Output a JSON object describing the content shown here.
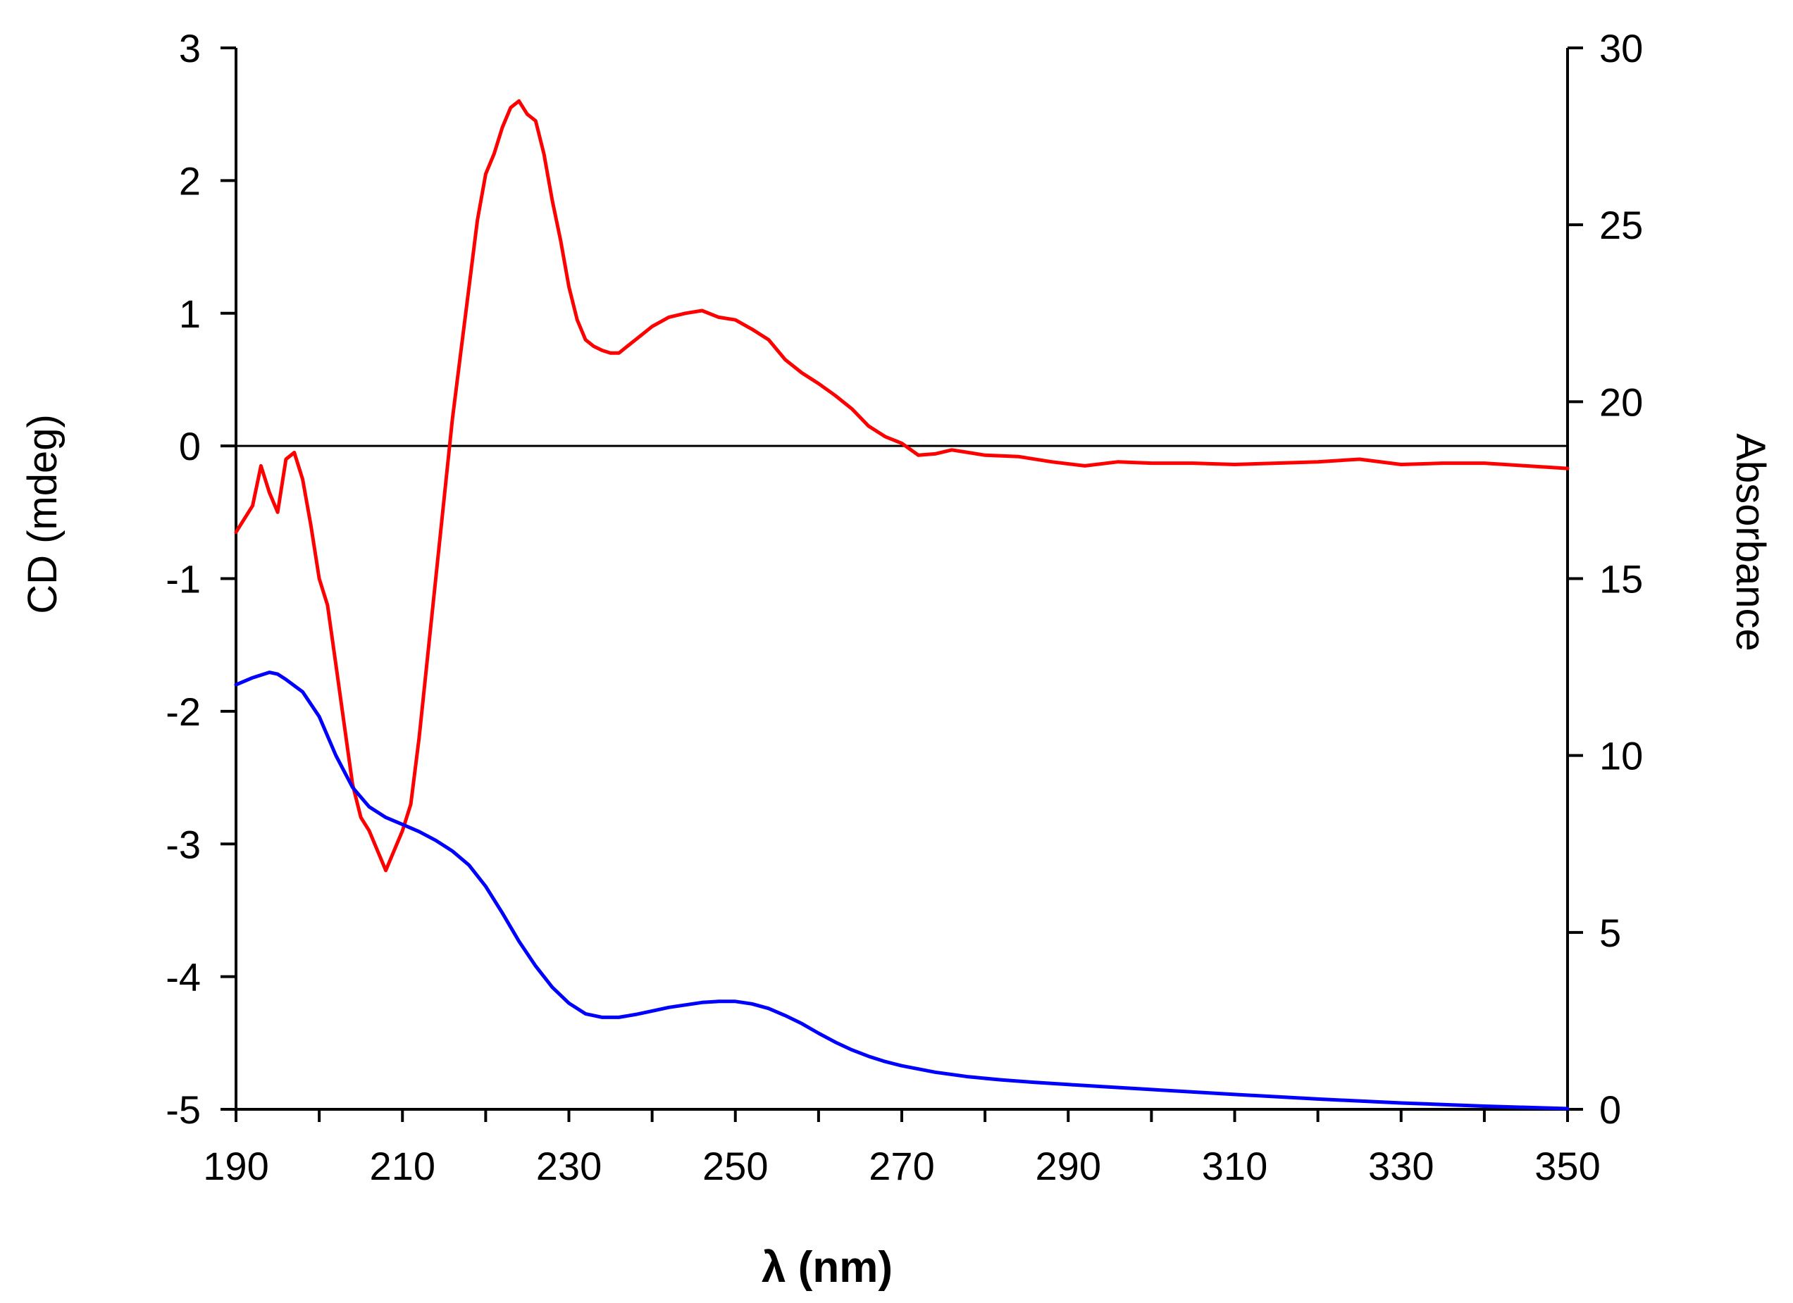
{
  "chart_data": {
    "type": "line",
    "xlabel": "λ (nm)",
    "ylabel": "CD (mdeg)",
    "y2label": "Absorbance",
    "xlim": [
      190,
      350
    ],
    "ylim": [
      -5,
      3
    ],
    "y2lim": [
      0,
      30
    ],
    "x_ticks": [
      "190",
      "210",
      "230",
      "250",
      "270",
      "290",
      "310",
      "330",
      "350"
    ],
    "y_ticks": [
      "-5",
      "-4",
      "-3",
      "-2",
      "-1",
      "0",
      "1",
      "2",
      "3"
    ],
    "y2_ticks": [
      "0",
      "5",
      "10",
      "15",
      "20",
      "25",
      "30"
    ],
    "grid": false,
    "legend": "none",
    "zero_line": true,
    "series": [
      {
        "axis": "left",
        "color": "#ff0000",
        "x": [
          190,
          191,
          192,
          193,
          194,
          195,
          196,
          197,
          198,
          199,
          200,
          201,
          202,
          203,
          204,
          205,
          206,
          207,
          208,
          209,
          210,
          211,
          212,
          213,
          214,
          215,
          216,
          217,
          218,
          219,
          220,
          221,
          222,
          223,
          224,
          225,
          226,
          227,
          228,
          229,
          230,
          231,
          232,
          233,
          234,
          235,
          236,
          237,
          238,
          240,
          242,
          244,
          246,
          248,
          250,
          252,
          254,
          256,
          258,
          260,
          262,
          264,
          266,
          268,
          270,
          272,
          274,
          276,
          278,
          280,
          284,
          288,
          292,
          296,
          300,
          305,
          310,
          315,
          320,
          325,
          330,
          335,
          340,
          345,
          350
        ],
        "values": [
          -0.65,
          -0.55,
          -0.45,
          -0.15,
          -0.35,
          -0.5,
          -0.1,
          -0.05,
          -0.25,
          -0.6,
          -1.0,
          -1.2,
          -1.65,
          -2.1,
          -2.55,
          -2.8,
          -2.9,
          -3.05,
          -3.2,
          -3.05,
          -2.9,
          -2.7,
          -2.2,
          -1.6,
          -1.0,
          -0.4,
          0.2,
          0.7,
          1.2,
          1.7,
          2.05,
          2.2,
          2.4,
          2.55,
          2.6,
          2.5,
          2.45,
          2.2,
          1.85,
          1.55,
          1.2,
          0.95,
          0.8,
          0.75,
          0.72,
          0.7,
          0.7,
          0.75,
          0.8,
          0.9,
          0.97,
          1.0,
          1.02,
          0.97,
          0.95,
          0.88,
          0.8,
          0.65,
          0.55,
          0.47,
          0.38,
          0.28,
          0.15,
          0.07,
          0.02,
          -0.07,
          -0.06,
          -0.03,
          -0.05,
          -0.07,
          -0.08,
          -0.12,
          -0.15,
          -0.12,
          -0.13,
          -0.13,
          -0.14,
          -0.13,
          -0.12,
          -0.1,
          -0.14,
          -0.13,
          -0.13,
          -0.15,
          -0.17
        ]
      },
      {
        "axis": "right",
        "color": "#0000ff",
        "x": [
          190,
          192,
          194,
          195,
          196,
          198,
          200,
          202,
          204,
          206,
          208,
          210,
          212,
          214,
          216,
          218,
          220,
          222,
          224,
          226,
          228,
          230,
          232,
          234,
          236,
          238,
          240,
          242,
          244,
          246,
          248,
          250,
          252,
          254,
          256,
          258,
          260,
          262,
          264,
          266,
          268,
          270,
          274,
          278,
          282,
          286,
          290,
          295,
          300,
          310,
          320,
          330,
          340,
          350
        ],
        "values": [
          12.0,
          12.2,
          12.35,
          12.3,
          12.15,
          11.8,
          11.1,
          10.0,
          9.1,
          8.55,
          8.25,
          8.05,
          7.85,
          7.6,
          7.3,
          6.9,
          6.3,
          5.55,
          4.75,
          4.05,
          3.45,
          3.0,
          2.7,
          2.6,
          2.6,
          2.68,
          2.78,
          2.88,
          2.95,
          3.02,
          3.05,
          3.05,
          2.98,
          2.85,
          2.65,
          2.42,
          2.15,
          1.9,
          1.68,
          1.5,
          1.35,
          1.23,
          1.05,
          0.92,
          0.83,
          0.76,
          0.7,
          0.63,
          0.56,
          0.42,
          0.29,
          0.18,
          0.09,
          0.02
        ]
      }
    ]
  }
}
